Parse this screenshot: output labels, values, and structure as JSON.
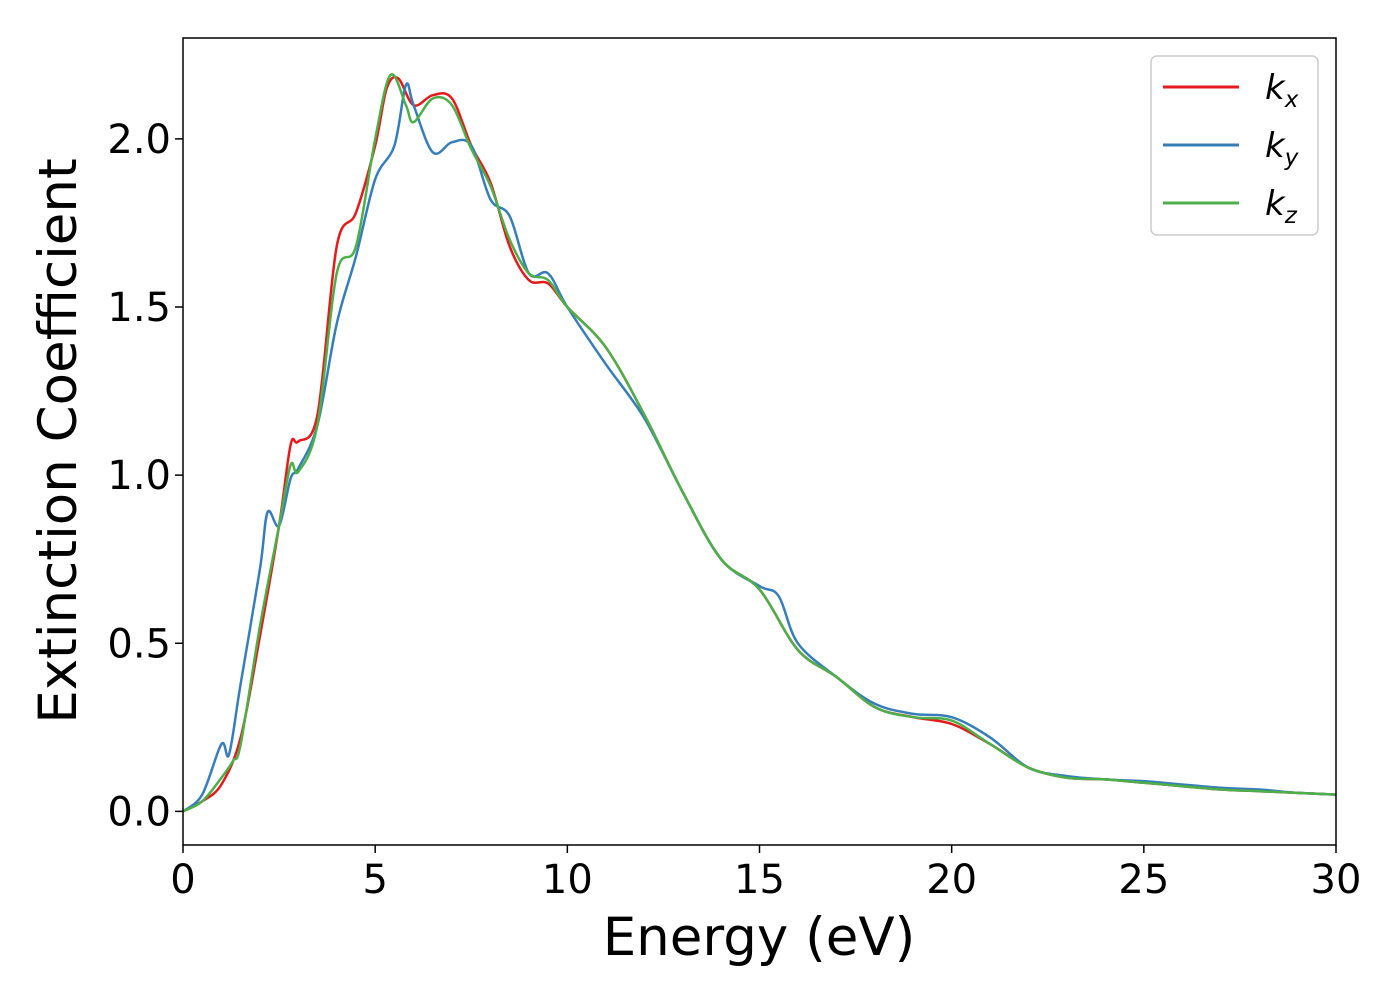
{
  "chart_data": {
    "type": "line",
    "title": "",
    "xlabel": "Energy (eV)",
    "ylabel": "Extinction Coefficient",
    "xlim": [
      0,
      30
    ],
    "ylim": [
      -0.1,
      2.3
    ],
    "xticks": [
      "0",
      "5",
      "10",
      "15",
      "20",
      "25",
      "30"
    ],
    "yticks": [
      "0.0",
      "0.5",
      "1.0",
      "1.5",
      "2.0"
    ],
    "grid": false,
    "legend_position": "top-right",
    "series": [
      {
        "name": "k",
        "subscript": "x",
        "color": "#e41a1c",
        "x": [
          0,
          0.5,
          1.0,
          1.5,
          2.0,
          2.5,
          2.8,
          3.0,
          3.5,
          4.0,
          4.5,
          5.0,
          5.3,
          5.6,
          6.0,
          6.5,
          7.0,
          7.5,
          8.0,
          8.5,
          9.0,
          9.5,
          10,
          11,
          12,
          13,
          14,
          15,
          16,
          17,
          18,
          19,
          20,
          21,
          22,
          23,
          24,
          25,
          26,
          27,
          28,
          29,
          30
        ],
        "y": [
          0.0,
          0.03,
          0.08,
          0.22,
          0.52,
          0.85,
          1.09,
          1.1,
          1.18,
          1.68,
          1.78,
          1.98,
          2.15,
          2.18,
          2.1,
          2.13,
          2.12,
          1.98,
          1.87,
          1.68,
          1.58,
          1.57,
          1.5,
          1.38,
          1.18,
          0.95,
          0.75,
          0.66,
          0.48,
          0.4,
          0.31,
          0.28,
          0.26,
          0.2,
          0.13,
          0.1,
          0.095,
          0.085,
          0.075,
          0.065,
          0.06,
          0.055,
          0.05
        ]
      },
      {
        "name": "k",
        "subscript": "y",
        "color": "#377eb8",
        "x": [
          0,
          0.5,
          1.0,
          1.2,
          1.5,
          2.0,
          2.2,
          2.5,
          2.8,
          3.0,
          3.5,
          4.0,
          4.5,
          5.0,
          5.5,
          5.8,
          6.0,
          6.5,
          7.0,
          7.5,
          8.0,
          8.5,
          9.0,
          9.5,
          10,
          11,
          12,
          13,
          14,
          15,
          15.5,
          16,
          17,
          18,
          19,
          20,
          21,
          22,
          23,
          24,
          25,
          26,
          27,
          28,
          29,
          30
        ],
        "y": [
          0.0,
          0.05,
          0.2,
          0.17,
          0.38,
          0.72,
          0.89,
          0.85,
          0.99,
          1.02,
          1.15,
          1.45,
          1.65,
          1.88,
          1.98,
          2.16,
          2.1,
          1.96,
          1.99,
          1.98,
          1.82,
          1.77,
          1.6,
          1.6,
          1.5,
          1.33,
          1.17,
          0.95,
          0.75,
          0.67,
          0.64,
          0.5,
          0.4,
          0.32,
          0.29,
          0.28,
          0.22,
          0.13,
          0.105,
          0.095,
          0.09,
          0.08,
          0.07,
          0.065,
          0.055,
          0.05
        ]
      },
      {
        "name": "k",
        "subscript": "z",
        "color": "#4daf4a",
        "x": [
          0,
          0.5,
          1.0,
          1.3,
          1.5,
          2.0,
          2.5,
          2.8,
          3.0,
          3.5,
          4.0,
          4.5,
          5.0,
          5.4,
          5.8,
          6.0,
          6.5,
          7.0,
          7.5,
          8.0,
          8.5,
          9.0,
          9.5,
          10,
          11,
          12,
          13,
          14,
          15,
          16,
          17,
          18,
          19,
          20,
          21,
          22,
          23,
          24,
          25,
          26,
          27,
          28,
          29,
          30
        ],
        "y": [
          0.0,
          0.03,
          0.1,
          0.15,
          0.2,
          0.55,
          0.85,
          1.03,
          1.01,
          1.15,
          1.6,
          1.68,
          2.0,
          2.19,
          2.1,
          2.05,
          2.12,
          2.1,
          1.97,
          1.86,
          1.7,
          1.6,
          1.58,
          1.5,
          1.38,
          1.18,
          0.95,
          0.75,
          0.66,
          0.48,
          0.4,
          0.31,
          0.28,
          0.27,
          0.2,
          0.13,
          0.1,
          0.095,
          0.085,
          0.075,
          0.065,
          0.06,
          0.055,
          0.05
        ]
      }
    ]
  }
}
